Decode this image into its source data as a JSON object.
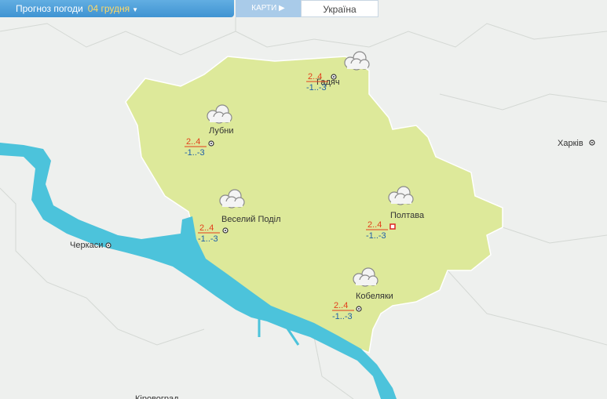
{
  "header": {
    "title": "Прогноз погоди",
    "date": "04 грудня",
    "tabs": [
      "КАРТИ",
      "Україна"
    ]
  },
  "map": {
    "cities": [
      {
        "name": "Гадяч",
        "day": "2..4",
        "night": "-1..-3"
      },
      {
        "name": "Лубни",
        "day": "2..4",
        "night": "-1..-3"
      },
      {
        "name": "Веселий Поділ",
        "day": "2..4",
        "night": "-1..-3"
      },
      {
        "name": "Полтава",
        "day": "2..4",
        "night": "-1..-3"
      },
      {
        "name": "Кобеляки",
        "day": "2..4",
        "night": "-1..-3"
      }
    ],
    "other_cities": [
      "Харків",
      "Черкаси",
      "Кіровоград"
    ]
  }
}
